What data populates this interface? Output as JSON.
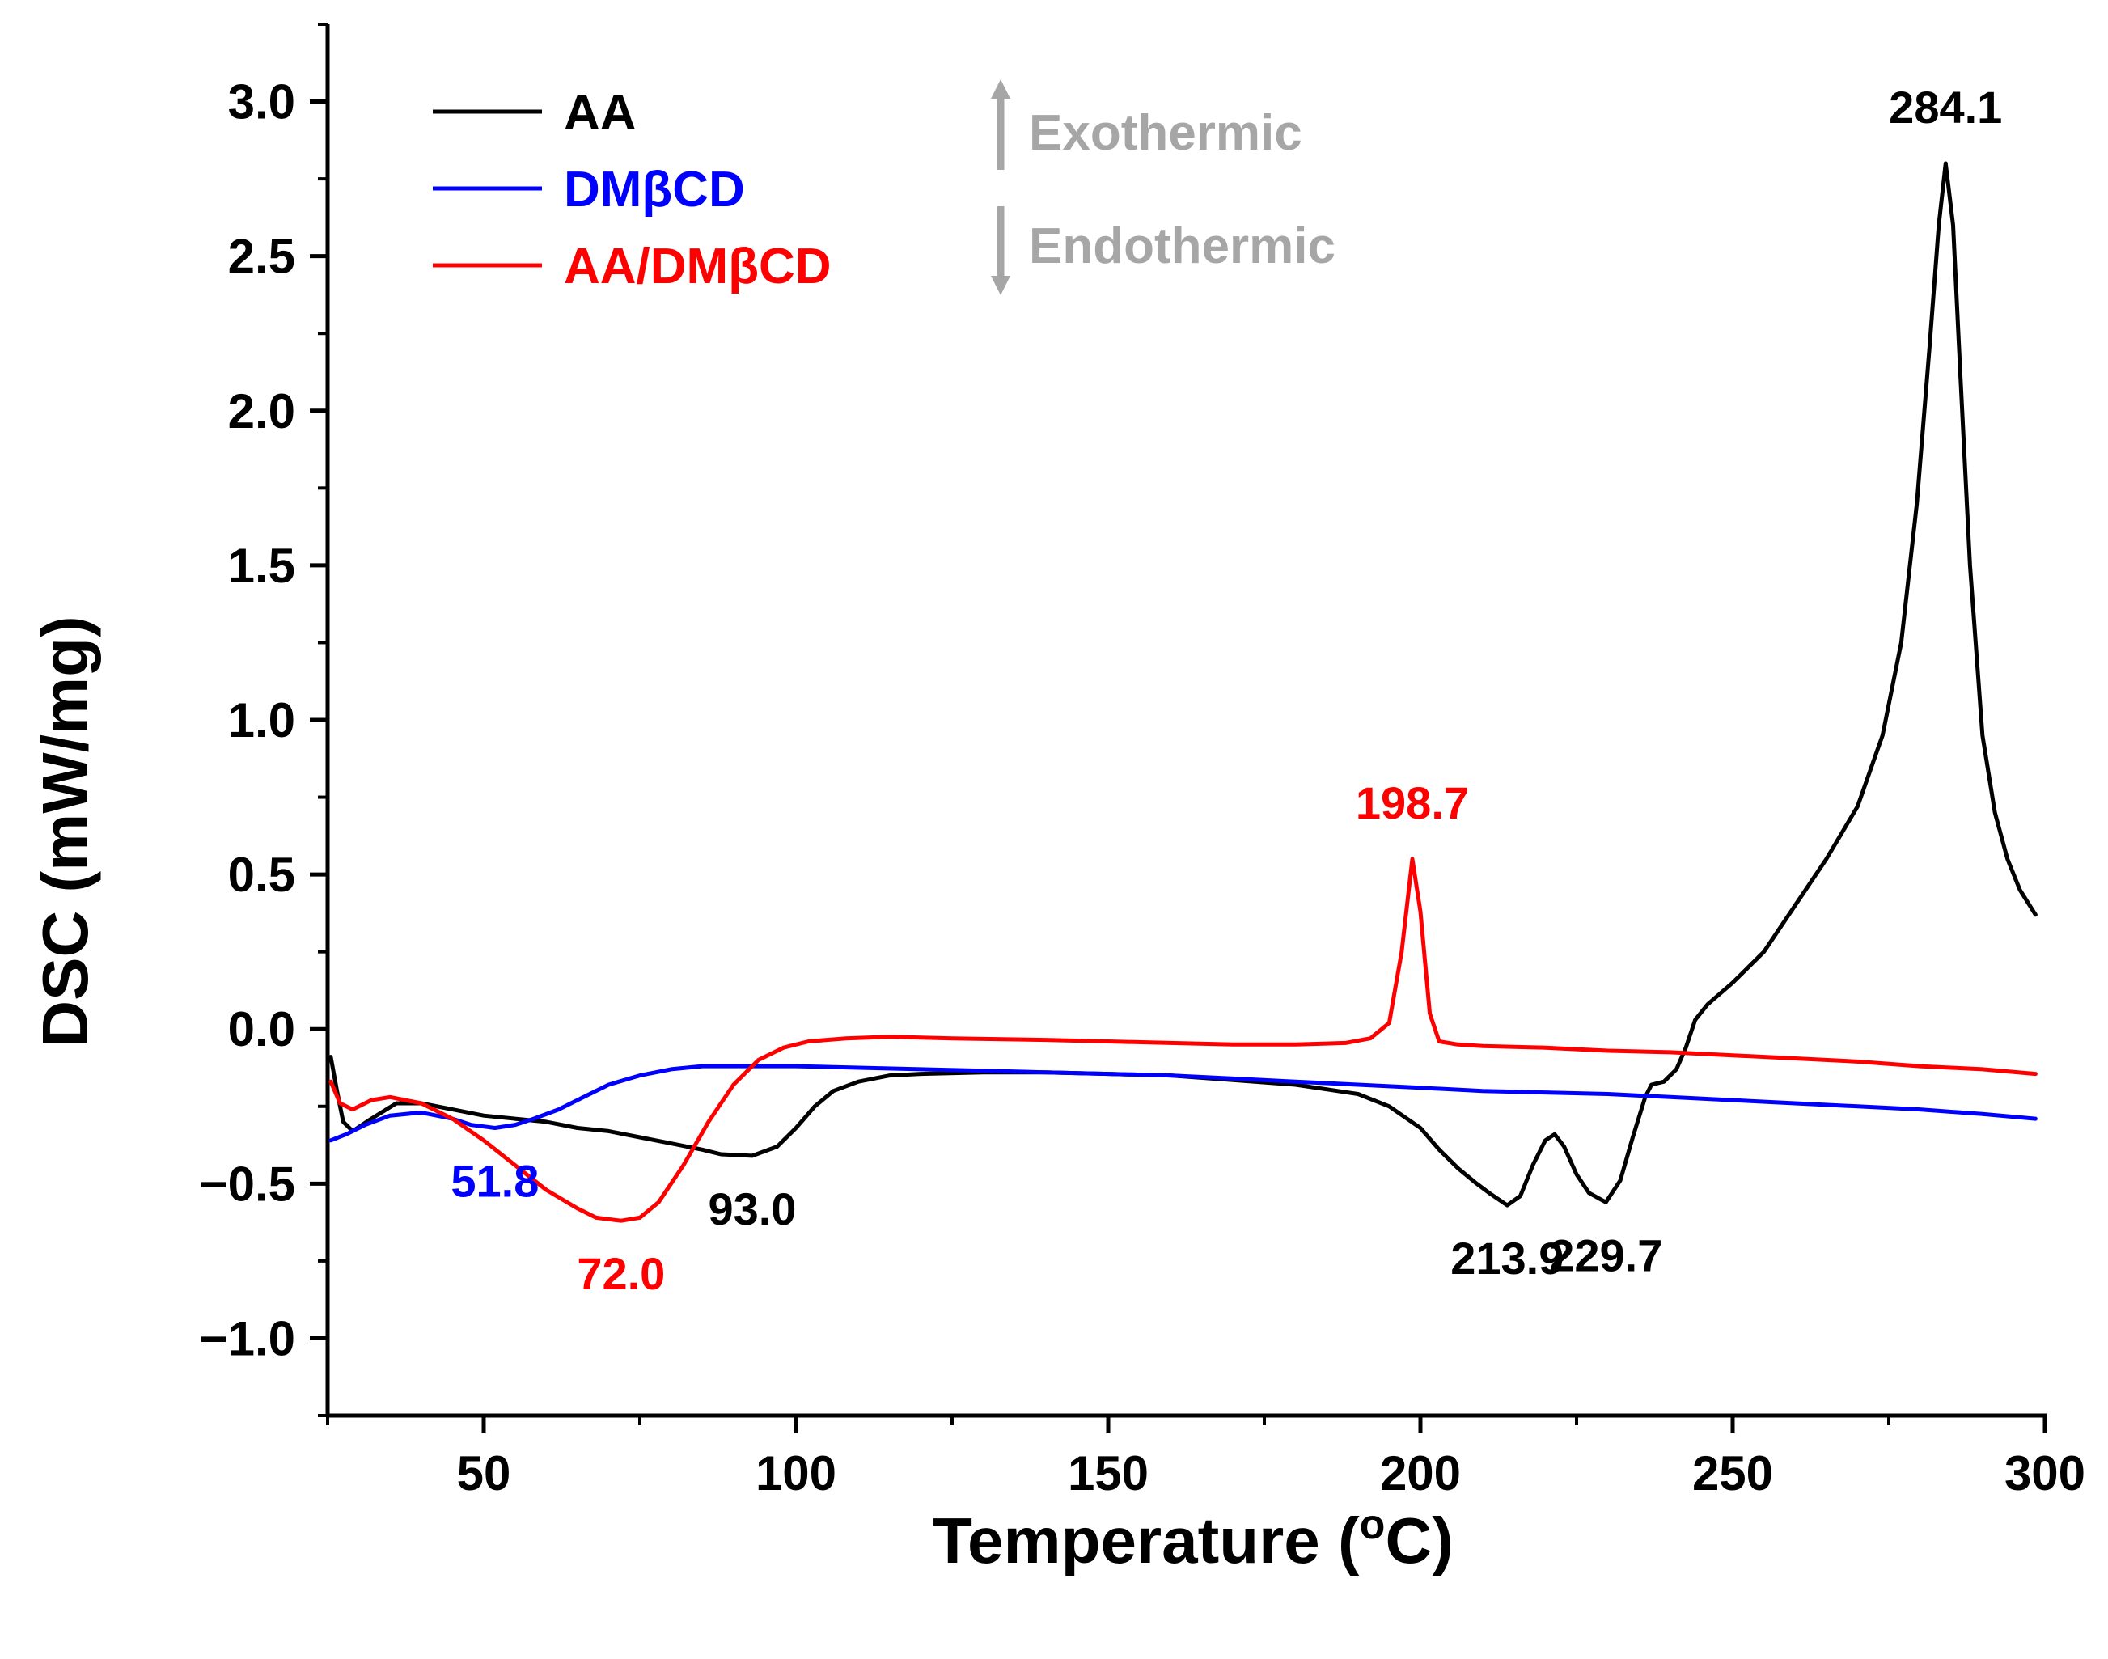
{
  "chart_data": {
    "type": "line",
    "xlabel": "Temperature (°C)",
    "xlabel_main": "Temperature (",
    "xlabel_sup": "o",
    "xlabel_unit": "C)",
    "ylabel": "DSC (mW/mg)",
    "xlim": [
      25,
      300
    ],
    "ylim": [
      -1.25,
      3.25
    ],
    "x_ticks": [
      {
        "value": 50,
        "label": "50"
      },
      {
        "value": 100,
        "label": "100"
      },
      {
        "value": 150,
        "label": "150"
      },
      {
        "value": 200,
        "label": "200"
      },
      {
        "value": 250,
        "label": "250"
      },
      {
        "value": 300,
        "label": "300"
      }
    ],
    "y_ticks": [
      {
        "value": 3.0,
        "label": "3.0"
      },
      {
        "value": 2.5,
        "label": "2.5"
      },
      {
        "value": 2.0,
        "label": "2.0"
      },
      {
        "value": 1.5,
        "label": "1.5"
      },
      {
        "value": 1.0,
        "label": "1.0"
      },
      {
        "value": 0.5,
        "label": "0.5"
      },
      {
        "value": 0.0,
        "label": "0.0"
      },
      {
        "value": -0.5,
        "label": "−0.5"
      },
      {
        "value": -1.0,
        "label": "−1.0"
      }
    ],
    "series": [
      {
        "name": "AA",
        "color": "#000000",
        "points": [
          [
            25.5,
            -0.09
          ],
          [
            26.5,
            -0.2
          ],
          [
            27.5,
            -0.3
          ],
          [
            29,
            -0.33
          ],
          [
            32,
            -0.29
          ],
          [
            36,
            -0.24
          ],
          [
            40,
            -0.24
          ],
          [
            45,
            -0.26
          ],
          [
            50,
            -0.28
          ],
          [
            55,
            -0.29
          ],
          [
            60,
            -0.3
          ],
          [
            65,
            -0.32
          ],
          [
            70,
            -0.33
          ],
          [
            75,
            -0.35
          ],
          [
            80,
            -0.37
          ],
          [
            85,
            -0.39
          ],
          [
            88,
            -0.405
          ],
          [
            93,
            -0.41
          ],
          [
            97,
            -0.38
          ],
          [
            100,
            -0.32
          ],
          [
            103,
            -0.25
          ],
          [
            106,
            -0.2
          ],
          [
            110,
            -0.17
          ],
          [
            115,
            -0.15
          ],
          [
            120,
            -0.145
          ],
          [
            130,
            -0.14
          ],
          [
            140,
            -0.14
          ],
          [
            150,
            -0.145
          ],
          [
            160,
            -0.15
          ],
          [
            170,
            -0.165
          ],
          [
            180,
            -0.18
          ],
          [
            190,
            -0.21
          ],
          [
            195,
            -0.25
          ],
          [
            200,
            -0.32
          ],
          [
            203,
            -0.39
          ],
          [
            206,
            -0.45
          ],
          [
            209,
            -0.5
          ],
          [
            211,
            -0.53
          ],
          [
            213.9,
            -0.57
          ],
          [
            216,
            -0.54
          ],
          [
            218,
            -0.44
          ],
          [
            220,
            -0.36
          ],
          [
            221.5,
            -0.34
          ],
          [
            223,
            -0.38
          ],
          [
            225,
            -0.47
          ],
          [
            227,
            -0.53
          ],
          [
            229.7,
            -0.56
          ],
          [
            232,
            -0.49
          ],
          [
            234,
            -0.35
          ],
          [
            236,
            -0.22
          ],
          [
            237,
            -0.18
          ],
          [
            239,
            -0.17
          ],
          [
            241,
            -0.13
          ],
          [
            242.5,
            -0.06
          ],
          [
            244,
            0.03
          ],
          [
            246,
            0.08
          ],
          [
            250,
            0.15
          ],
          [
            255,
            0.25
          ],
          [
            260,
            0.4
          ],
          [
            265,
            0.55
          ],
          [
            270,
            0.72
          ],
          [
            274,
            0.95
          ],
          [
            277,
            1.25
          ],
          [
            279.5,
            1.7
          ],
          [
            281.5,
            2.2
          ],
          [
            283,
            2.6
          ],
          [
            284.1,
            2.8
          ],
          [
            285.3,
            2.6
          ],
          [
            286.5,
            2.1
          ],
          [
            288,
            1.5
          ],
          [
            290,
            0.95
          ],
          [
            292,
            0.7
          ],
          [
            294,
            0.55
          ],
          [
            296,
            0.45
          ],
          [
            298.5,
            0.37
          ]
        ]
      },
      {
        "name": "DMβCD",
        "color": "#0000ff",
        "points": [
          [
            25.5,
            -0.36
          ],
          [
            28,
            -0.34
          ],
          [
            31,
            -0.31
          ],
          [
            35,
            -0.28
          ],
          [
            40,
            -0.27
          ],
          [
            45,
            -0.29
          ],
          [
            48,
            -0.31
          ],
          [
            51.8,
            -0.32
          ],
          [
            55,
            -0.31
          ],
          [
            58,
            -0.29
          ],
          [
            62,
            -0.26
          ],
          [
            66,
            -0.22
          ],
          [
            70,
            -0.18
          ],
          [
            75,
            -0.15
          ],
          [
            80,
            -0.13
          ],
          [
            85,
            -0.12
          ],
          [
            90,
            -0.12
          ],
          [
            100,
            -0.12
          ],
          [
            110,
            -0.125
          ],
          [
            120,
            -0.13
          ],
          [
            130,
            -0.135
          ],
          [
            140,
            -0.14
          ],
          [
            150,
            -0.145
          ],
          [
            160,
            -0.15
          ],
          [
            170,
            -0.16
          ],
          [
            180,
            -0.17
          ],
          [
            190,
            -0.18
          ],
          [
            200,
            -0.19
          ],
          [
            210,
            -0.2
          ],
          [
            220,
            -0.205
          ],
          [
            230,
            -0.21
          ],
          [
            240,
            -0.22
          ],
          [
            250,
            -0.23
          ],
          [
            260,
            -0.24
          ],
          [
            270,
            -0.25
          ],
          [
            280,
            -0.26
          ],
          [
            290,
            -0.275
          ],
          [
            298.5,
            -0.29
          ]
        ]
      },
      {
        "name": "AA/DMβCD",
        "color": "#ff0000",
        "points": [
          [
            25.5,
            -0.17
          ],
          [
            27,
            -0.24
          ],
          [
            29,
            -0.26
          ],
          [
            32,
            -0.23
          ],
          [
            35,
            -0.22
          ],
          [
            40,
            -0.24
          ],
          [
            45,
            -0.29
          ],
          [
            50,
            -0.36
          ],
          [
            55,
            -0.44
          ],
          [
            60,
            -0.52
          ],
          [
            65,
            -0.58
          ],
          [
            68,
            -0.61
          ],
          [
            72,
            -0.62
          ],
          [
            75,
            -0.61
          ],
          [
            78,
            -0.56
          ],
          [
            82,
            -0.44
          ],
          [
            86,
            -0.3
          ],
          [
            90,
            -0.18
          ],
          [
            94,
            -0.1
          ],
          [
            98,
            -0.06
          ],
          [
            102,
            -0.04
          ],
          [
            108,
            -0.03
          ],
          [
            115,
            -0.025
          ],
          [
            125,
            -0.03
          ],
          [
            140,
            -0.035
          ],
          [
            150,
            -0.04
          ],
          [
            160,
            -0.045
          ],
          [
            170,
            -0.05
          ],
          [
            180,
            -0.05
          ],
          [
            188,
            -0.045
          ],
          [
            192,
            -0.03
          ],
          [
            195,
            0.02
          ],
          [
            197,
            0.25
          ],
          [
            198.7,
            0.55
          ],
          [
            200,
            0.38
          ],
          [
            201.5,
            0.05
          ],
          [
            203,
            -0.04
          ],
          [
            206,
            -0.05
          ],
          [
            210,
            -0.055
          ],
          [
            220,
            -0.06
          ],
          [
            230,
            -0.07
          ],
          [
            240,
            -0.075
          ],
          [
            250,
            -0.085
          ],
          [
            260,
            -0.095
          ],
          [
            270,
            -0.105
          ],
          [
            280,
            -0.12
          ],
          [
            290,
            -0.13
          ],
          [
            298.5,
            -0.145
          ]
        ]
      }
    ],
    "annotations": [
      {
        "text": "284.1",
        "x": 284.1,
        "y": 2.8,
        "color": "#000000",
        "place": "above"
      },
      {
        "text": "198.7",
        "x": 198.7,
        "y": 0.55,
        "color": "#ff0000",
        "place": "above"
      },
      {
        "text": "93.0",
        "x": 93.0,
        "y": -0.41,
        "color": "#000000",
        "place": "below"
      },
      {
        "text": "72.0",
        "x": 72.0,
        "y": -0.62,
        "color": "#ff0000",
        "place": "below"
      },
      {
        "text": "51.8",
        "x": 51.8,
        "y": -0.32,
        "color": "#0000ff",
        "place": "below"
      },
      {
        "text": "213.9",
        "x": 213.9,
        "y": -0.57,
        "color": "#000000",
        "place": "below"
      },
      {
        "text": "229.7",
        "x": 229.7,
        "y": -0.56,
        "color": "#000000",
        "place": "below"
      }
    ],
    "legend_position": "top-left",
    "direction_labels": {
      "up": "Exothermic",
      "down": "Endothermic",
      "color": "#a6a6a6"
    }
  }
}
